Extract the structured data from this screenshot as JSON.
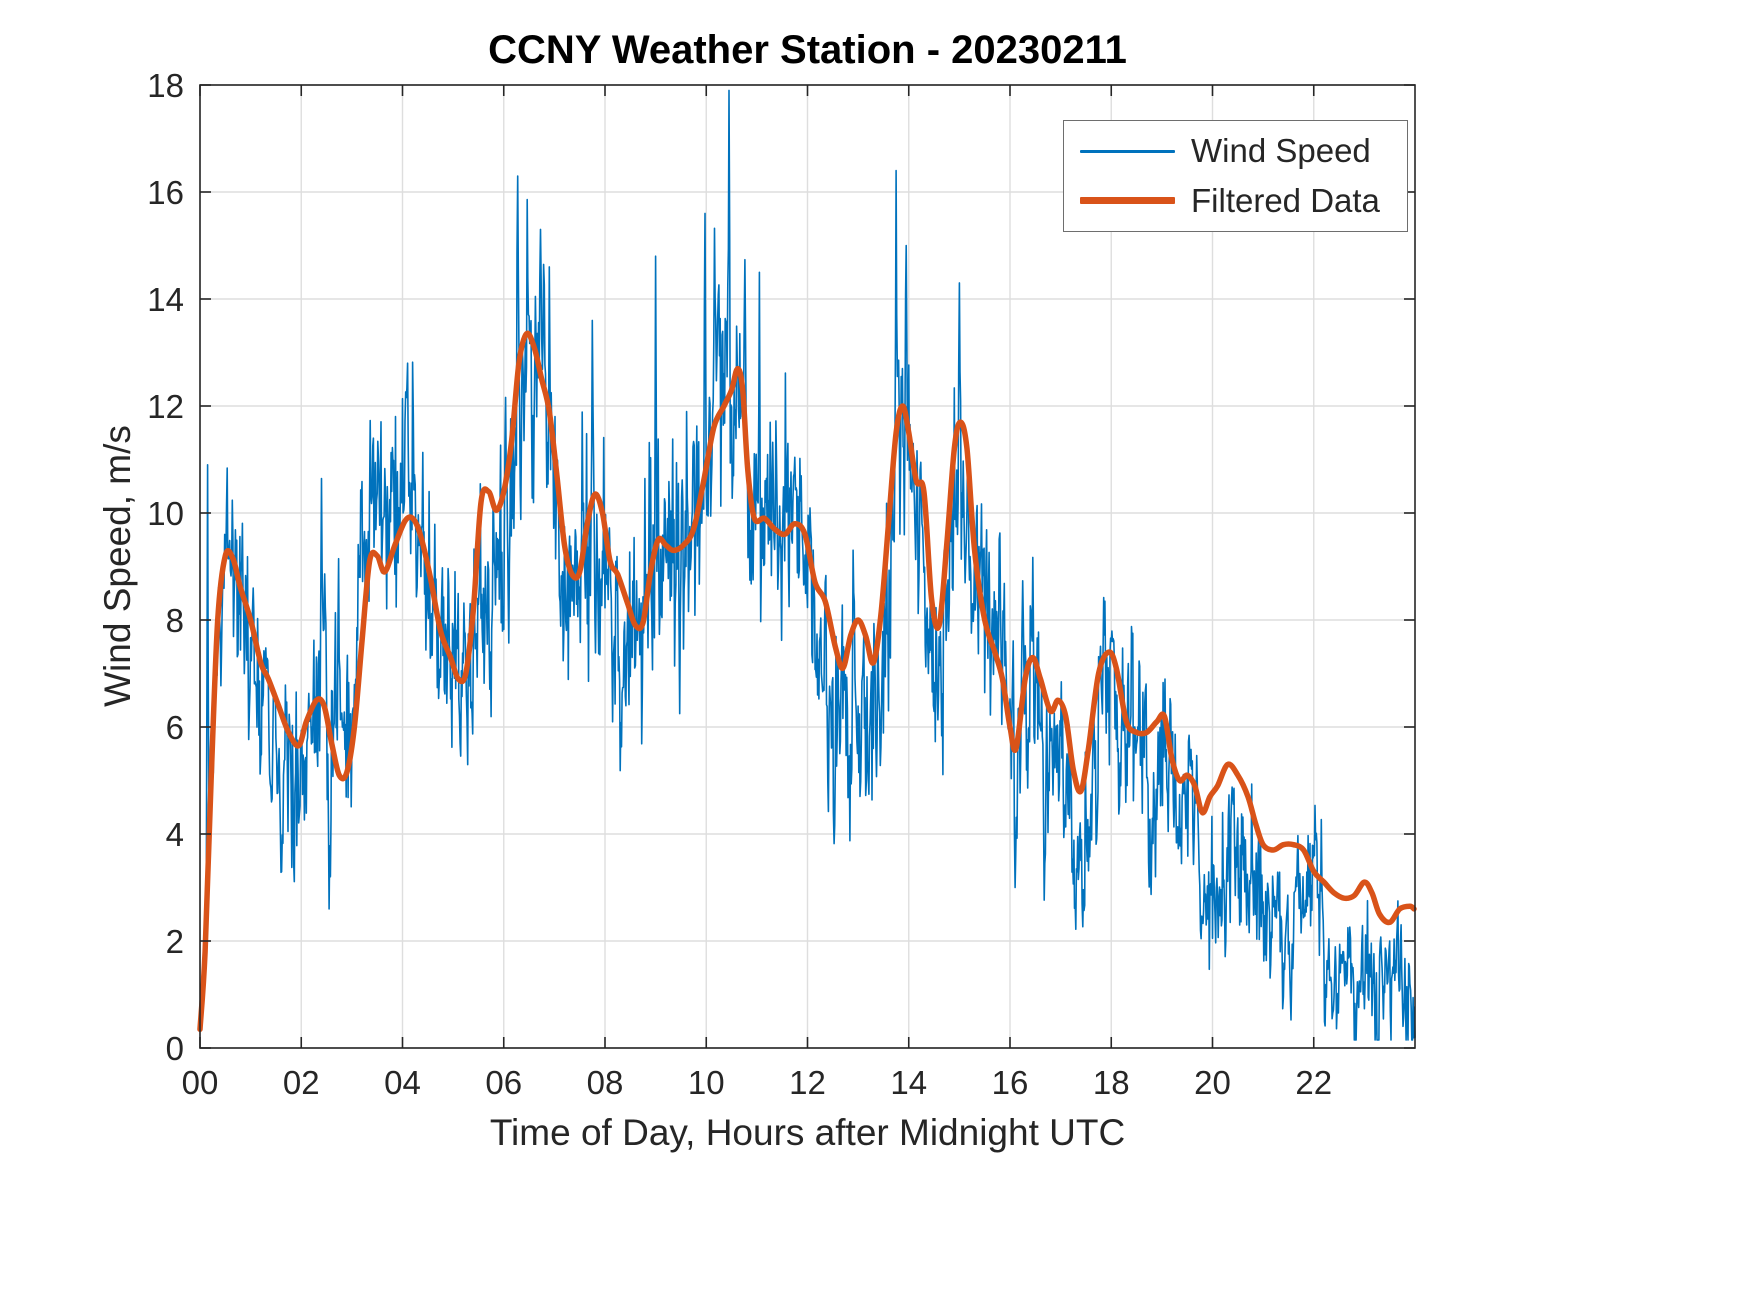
{
  "chart_data": {
    "type": "line",
    "title": "CCNY Weather Station - 20230211",
    "xlabel": "Time of Day, Hours after Midnight UTC",
    "ylabel": "Wind Speed, m/s",
    "xlim": [
      0,
      24
    ],
    "ylim": [
      0,
      18
    ],
    "grid": true,
    "x_ticks": [
      0,
      2,
      4,
      6,
      8,
      10,
      12,
      14,
      16,
      18,
      20,
      22
    ],
    "x_tick_labels": [
      "00",
      "02",
      "04",
      "06",
      "08",
      "10",
      "12",
      "14",
      "16",
      "18",
      "20",
      "22"
    ],
    "y_ticks": [
      0,
      2,
      4,
      6,
      8,
      10,
      12,
      14,
      16,
      18
    ],
    "y_tick_labels": [
      "0",
      "2",
      "4",
      "6",
      "8",
      "10",
      "12",
      "14",
      "16",
      "18"
    ],
    "colors": {
      "background": "#ffffff",
      "title": "#000000",
      "text": "#262626",
      "axis": "#262626",
      "grid": "#dedede",
      "wind_speed": "#0072BD",
      "filtered": "#D95319"
    },
    "legend": {
      "position": "top-right",
      "entries": [
        {
          "label": "Wind Speed",
          "color": "#0072BD",
          "line_width": 3
        },
        {
          "label": "Filtered Data",
          "color": "#D95319",
          "line_width": 7
        }
      ]
    },
    "series": [
      {
        "name": "Wind Speed",
        "color": "#0072BD",
        "line_width": 1.6,
        "derived": "filtered_plus_noise"
      },
      {
        "name": "Filtered Data",
        "color": "#D95319",
        "line_width": 5.5,
        "x": [
          0,
          0.1,
          0.22,
          0.35,
          0.5,
          0.65,
          0.8,
          1.0,
          1.2,
          1.35,
          1.55,
          1.75,
          1.95,
          2.1,
          2.3,
          2.45,
          2.6,
          2.75,
          2.9,
          3.05,
          3.2,
          3.35,
          3.5,
          3.65,
          3.85,
          4.05,
          4.2,
          4.35,
          4.55,
          4.75,
          4.95,
          5.1,
          5.25,
          5.4,
          5.55,
          5.7,
          5.85,
          6.0,
          6.15,
          6.3,
          6.45,
          6.6,
          6.75,
          6.9,
          7.05,
          7.2,
          7.35,
          7.5,
          7.65,
          7.8,
          7.95,
          8.1,
          8.25,
          8.45,
          8.6,
          8.75,
          8.9,
          9.05,
          9.2,
          9.35,
          9.55,
          9.75,
          9.95,
          10.15,
          10.35,
          10.5,
          10.62,
          10.72,
          10.82,
          10.95,
          11.15,
          11.35,
          11.55,
          11.75,
          11.95,
          12.15,
          12.35,
          12.55,
          12.7,
          12.85,
          13.0,
          13.15,
          13.3,
          13.45,
          13.6,
          13.75,
          13.88,
          14.0,
          14.15,
          14.3,
          14.45,
          14.6,
          14.75,
          14.9,
          15.02,
          15.15,
          15.3,
          15.5,
          15.7,
          15.85,
          16.0,
          16.12,
          16.3,
          16.45,
          16.6,
          16.8,
          16.95,
          17.1,
          17.25,
          17.4,
          17.55,
          17.75,
          17.95,
          18.1,
          18.3,
          18.5,
          18.7,
          18.9,
          19.05,
          19.2,
          19.35,
          19.5,
          19.65,
          19.8,
          19.95,
          20.1,
          20.3,
          20.5,
          20.7,
          20.85,
          21.0,
          21.2,
          21.4,
          21.6,
          21.8,
          22.0,
          22.2,
          22.4,
          22.6,
          22.8,
          23.0,
          23.15,
          23.3,
          23.5,
          23.7,
          23.9,
          23.98
        ],
        "values": [
          0.35,
          1.8,
          5.0,
          8.0,
          9.2,
          9.15,
          8.6,
          8.0,
          7.2,
          6.9,
          6.4,
          5.9,
          5.65,
          6.1,
          6.5,
          6.4,
          5.7,
          5.1,
          5.15,
          6.0,
          7.6,
          9.1,
          9.2,
          8.9,
          9.4,
          9.85,
          9.9,
          9.6,
          8.8,
          7.8,
          7.3,
          6.9,
          7.0,
          8.2,
          10.2,
          10.4,
          10.05,
          10.4,
          11.3,
          12.8,
          13.35,
          13.1,
          12.5,
          11.9,
          10.7,
          9.4,
          8.85,
          8.9,
          9.8,
          10.35,
          10.0,
          9.1,
          8.85,
          8.3,
          7.9,
          7.95,
          8.9,
          9.5,
          9.4,
          9.3,
          9.4,
          9.7,
          10.6,
          11.6,
          12.0,
          12.3,
          12.7,
          12.3,
          10.8,
          9.9,
          9.9,
          9.7,
          9.6,
          9.8,
          9.6,
          8.7,
          8.35,
          7.5,
          7.1,
          7.7,
          8.0,
          7.7,
          7.2,
          8.1,
          9.8,
          11.5,
          12.0,
          11.5,
          10.6,
          10.4,
          8.4,
          7.9,
          9.4,
          11.2,
          11.7,
          11.2,
          9.3,
          8.0,
          7.4,
          6.9,
          6.0,
          5.6,
          6.9,
          7.3,
          6.9,
          6.3,
          6.5,
          6.2,
          5.2,
          4.8,
          5.6,
          7.0,
          7.4,
          7.1,
          6.1,
          5.9,
          5.9,
          6.1,
          6.2,
          5.4,
          5.0,
          5.1,
          4.9,
          4.4,
          4.7,
          4.9,
          5.3,
          5.1,
          4.7,
          4.2,
          3.8,
          3.7,
          3.8,
          3.8,
          3.7,
          3.3,
          3.1,
          2.9,
          2.8,
          2.85,
          3.1,
          2.9,
          2.5,
          2.35,
          2.6,
          2.65,
          2.6
        ]
      }
    ],
    "noise": {
      "seed": 20230211,
      "samples_per_hour": 80,
      "fast_phi": 0.4,
      "fast_sigma": 0.85,
      "slow_phi": 0.985,
      "slow_sigma": 0.14,
      "amplitude_profile": [
        [
          0,
          0.7
        ],
        [
          1,
          1.0
        ],
        [
          3,
          1.1
        ],
        [
          6,
          1.2
        ],
        [
          9,
          1.25
        ],
        [
          12,
          1.2
        ],
        [
          15,
          1.15
        ],
        [
          17,
          1.0
        ],
        [
          19,
          0.9
        ],
        [
          21,
          0.75
        ],
        [
          24,
          0.7
        ]
      ]
    },
    "spikes": [
      {
        "x": 0.15,
        "y": 10.9
      },
      {
        "x": 4.1,
        "y": 12.8
      },
      {
        "x": 6.28,
        "y": 16.3
      },
      {
        "x": 6.9,
        "y": 14.6
      },
      {
        "x": 7.75,
        "y": 13.6
      },
      {
        "x": 9.0,
        "y": 14.8
      },
      {
        "x": 9.98,
        "y": 15.6
      },
      {
        "x": 10.45,
        "y": 17.9
      },
      {
        "x": 11.05,
        "y": 14.5
      },
      {
        "x": 13.75,
        "y": 16.4
      },
      {
        "x": 13.95,
        "y": 15.0
      },
      {
        "x": 15.0,
        "y": 14.3
      },
      {
        "x": 2.55,
        "y": 2.6
      },
      {
        "x": 16.1,
        "y": 3.0
      },
      {
        "x": 23.9,
        "y": 1.2
      }
    ]
  }
}
